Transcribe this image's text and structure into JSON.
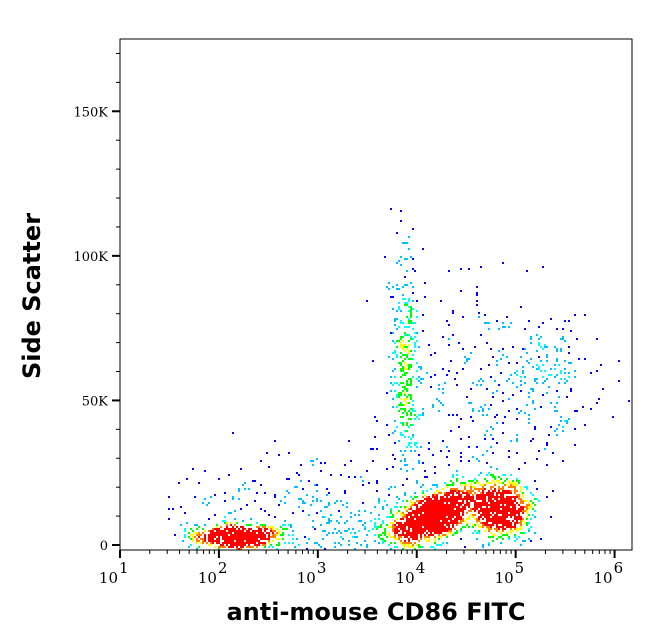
{
  "chart_data": {
    "type": "scatter",
    "subtype": "flow-cytometry pseudocolor density dot plot",
    "xlabel": "anti-mouse CD86 FITC",
    "ylabel": "Side Scatter",
    "x_scale": "log",
    "xlim": [
      10,
      1500000
    ],
    "ylim": [
      0,
      175000
    ],
    "x_ticks": [
      {
        "value": 10,
        "base": "10",
        "exp": "1"
      },
      {
        "value": 100,
        "base": "10",
        "exp": "2"
      },
      {
        "value": 1000,
        "base": "10",
        "exp": "3"
      },
      {
        "value": 10000,
        "base": "10",
        "exp": "4"
      },
      {
        "value": 100000,
        "base": "10",
        "exp": "5"
      },
      {
        "value": 1000000,
        "base": "10",
        "exp": "6"
      }
    ],
    "y_ticks": [
      {
        "value": 0,
        "label": "0"
      },
      {
        "value": 50000,
        "label": "50K"
      },
      {
        "value": 100000,
        "label": "100K"
      },
      {
        "value": 150000,
        "label": "150K"
      }
    ],
    "grid": false,
    "density_colors": [
      "#0000ff",
      "#00c0ff",
      "#00ffff",
      "#00ff00",
      "#ffff00",
      "#ff8000",
      "#ff0000"
    ],
    "populations": [
      {
        "x_center": 150,
        "y_center": 3000,
        "x_spread_decades": 0.22,
        "y_spread": 2200,
        "events": 700
      },
      {
        "x_center": 14000,
        "y_center": 10000,
        "x_spread_decades": 0.22,
        "y_spread": 4000,
        "events": 1500,
        "slope_y_per_decade": 12000
      },
      {
        "x_center": 70000,
        "y_center": 13000,
        "x_spread_decades": 0.15,
        "y_spread": 5000,
        "events": 900
      },
      {
        "x_center": 7500,
        "y_center": 60000,
        "x_spread_decades": 0.07,
        "y_spread": 20000,
        "events": 350
      },
      {
        "x_center": 200000,
        "y_center": 57000,
        "x_spread_decades": 0.3,
        "y_spread": 12000,
        "events": 220
      },
      {
        "x_center": 1000,
        "y_center": 12000,
        "x_spread_decades": 0.7,
        "y_spread": 9000,
        "events": 350
      },
      {
        "x_center": 25000,
        "y_center": 45000,
        "x_spread_decades": 0.35,
        "y_spread": 25000,
        "events": 250
      }
    ]
  }
}
